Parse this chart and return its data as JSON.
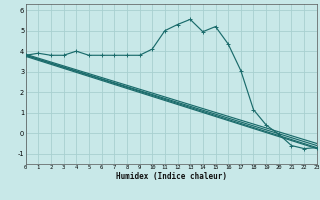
{
  "xlabel": "Humidex (Indice chaleur)",
  "background_color": "#c8e8e8",
  "grid_color": "#a8d0d0",
  "line_color": "#1a6b6b",
  "xlim": [
    0,
    23
  ],
  "ylim": [
    -1.5,
    6.3
  ],
  "yticks": [
    -1,
    0,
    1,
    2,
    3,
    4,
    5,
    6
  ],
  "xticks": [
    0,
    1,
    2,
    3,
    4,
    5,
    6,
    7,
    8,
    9,
    10,
    11,
    12,
    13,
    14,
    15,
    16,
    17,
    18,
    19,
    20,
    21,
    22,
    23
  ],
  "line1_x": [
    0,
    1,
    2,
    3,
    4,
    5,
    6,
    7,
    8,
    9,
    10,
    11,
    12,
    13,
    14,
    15,
    16,
    17,
    18,
    19,
    20,
    21,
    22,
    23
  ],
  "line1_y": [
    3.8,
    3.9,
    3.8,
    3.8,
    4.0,
    3.8,
    3.8,
    3.8,
    3.8,
    3.8,
    4.1,
    5.0,
    5.3,
    5.55,
    4.95,
    5.2,
    4.35,
    3.05,
    1.15,
    0.4,
    -0.05,
    -0.6,
    -0.75,
    -0.7
  ],
  "trend_lines": [
    {
      "x": [
        0,
        23
      ],
      "y": [
        3.8,
        -0.6
      ]
    },
    {
      "x": [
        0,
        23
      ],
      "y": [
        3.8,
        -0.7
      ]
    },
    {
      "x": [
        0,
        23
      ],
      "y": [
        3.85,
        -0.5
      ]
    },
    {
      "x": [
        0,
        23
      ],
      "y": [
        3.75,
        -0.75
      ]
    }
  ]
}
